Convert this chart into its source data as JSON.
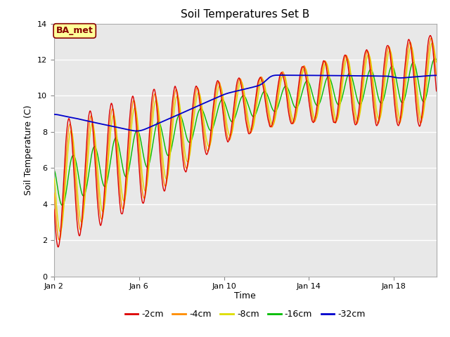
{
  "title": "Soil Temperatures Set B",
  "xlabel": "Time",
  "ylabel": "Soil Temperature (C)",
  "ylim": [
    0,
    14
  ],
  "yticks": [
    0,
    2,
    4,
    6,
    8,
    10,
    12,
    14
  ],
  "fig_bg_color": "#ffffff",
  "plot_bg_color": "#e8e8e8",
  "grid_color": "#ffffff",
  "line_colors": {
    "-2cm": "#dd0000",
    "-4cm": "#ff8c00",
    "-8cm": "#dddd00",
    "-16cm": "#00bb00",
    "-32cm": "#0000cc"
  },
  "legend_labels": [
    "-2cm",
    "-4cm",
    "-8cm",
    "-16cm",
    "-32cm"
  ],
  "annotation_text": "BA_met",
  "annotation_color": "#880000",
  "annotation_bg": "#ffff99",
  "xtick_days": [
    2,
    6,
    10,
    14,
    18
  ],
  "xtick_labels": [
    "Jan 2",
    "Jan 6",
    "Jan 10",
    "Jan 14",
    "Jan 18"
  ]
}
